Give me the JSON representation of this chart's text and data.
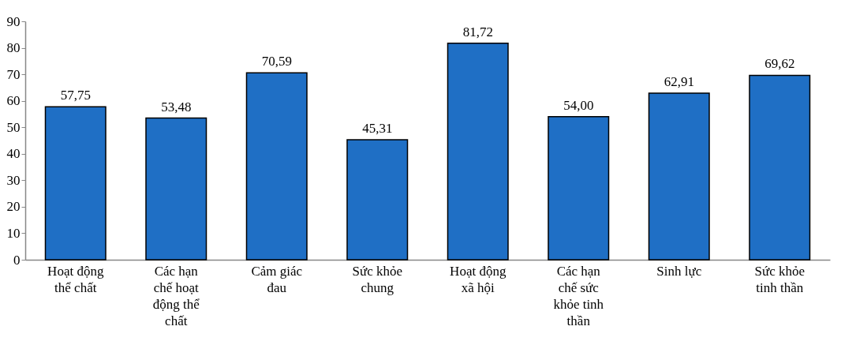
{
  "chart_data": {
    "type": "bar",
    "categories": [
      "Hoạt động thể chất",
      "Các hạn chế hoạt động thể chất",
      "Cảm giác đau",
      "Sức khỏe chung",
      "Hoạt động xã hội",
      "Các hạn chế sức khỏe tinh thần",
      "Sinh lực",
      "Sức khỏe tinh thần"
    ],
    "values": [
      57.75,
      53.48,
      70.59,
      45.31,
      81.72,
      54.0,
      62.91,
      69.62
    ],
    "value_labels": [
      "57,75",
      "53,48",
      "70,59",
      "45,31",
      "81,72",
      "54,00",
      "62,91",
      "69,62"
    ],
    "color": "#1f6fc5",
    "ylim": [
      0,
      90
    ],
    "yticks": [
      0,
      10,
      20,
      30,
      40,
      50,
      60,
      70,
      80,
      90
    ],
    "grid": false
  }
}
